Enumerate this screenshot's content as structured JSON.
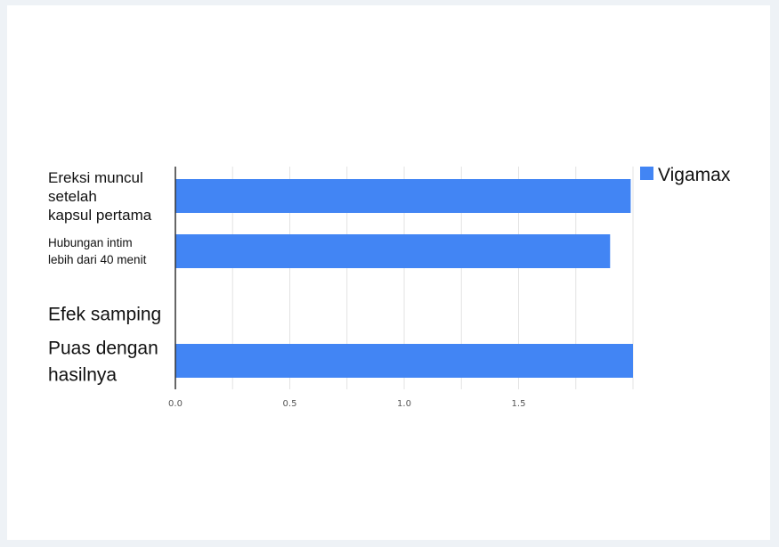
{
  "chart_data": {
    "type": "bar",
    "orientation": "horizontal",
    "categories": [
      "Ereksi muncul\nsetelah\nkapsul pertama",
      "Hubungan intim\nlebih dari 40 menit",
      "Efek samping",
      "Puas dengan\nhasilnya"
    ],
    "series": [
      {
        "name": "Vigamax",
        "values": [
          1.99,
          1.9,
          0,
          2.0
        ]
      }
    ],
    "xlim": [
      0,
      2.0
    ],
    "xticks": [
      0,
      0.5,
      1.0,
      1.5
    ],
    "xtick_labels": [
      "0.0",
      "0.5",
      "1.0",
      "1.5"
    ],
    "grid": true,
    "legend_position": "top-right",
    "colors": {
      "bar": "#4285f4",
      "grid": "#e3e3e3",
      "axis": "#333333"
    }
  }
}
